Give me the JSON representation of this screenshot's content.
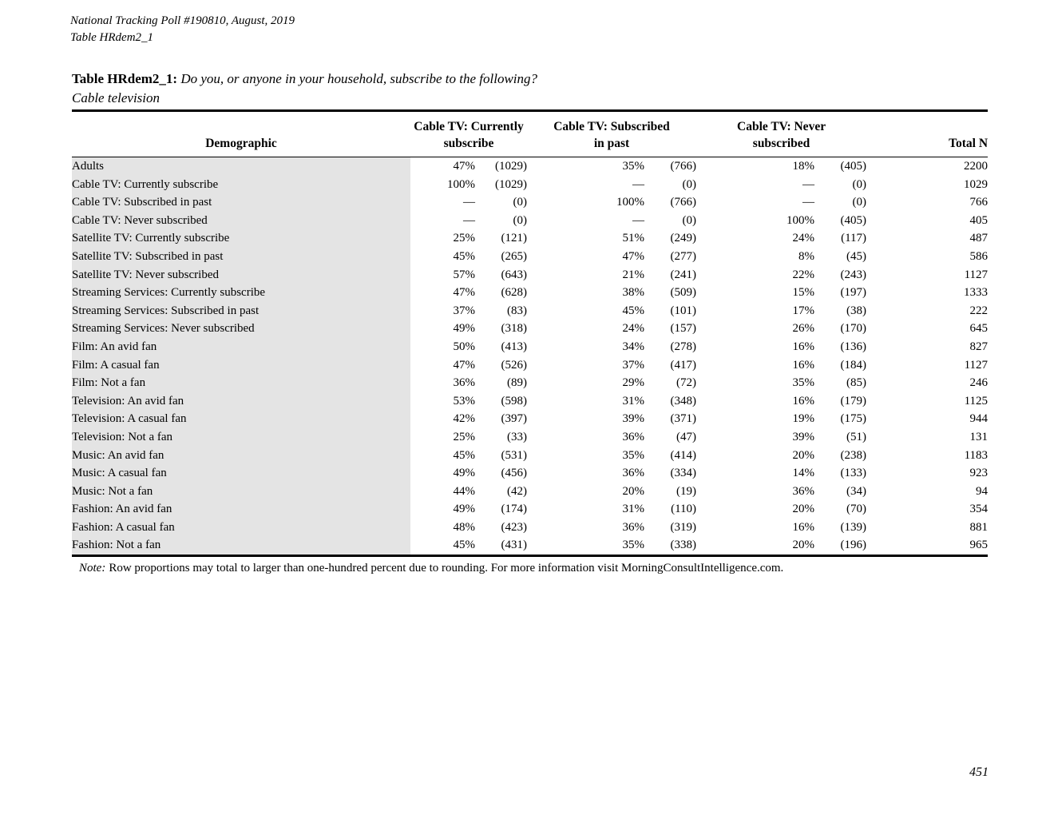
{
  "meta": {
    "line1": "National Tracking Poll #190810, August, 2019",
    "line2": "Table HRdem2_1",
    "page_number": "451"
  },
  "title": {
    "label": "Table HRdem2_1:",
    "question": "Do you, or anyone in your household, subscribe to the following?",
    "subtitle": "Cable television"
  },
  "colors": {
    "row_shade": "#e4e4e4",
    "rule": "#000000",
    "text": "#000000"
  },
  "table": {
    "header": {
      "demographic": "Demographic",
      "group1_line1": "Cable TV: Currently",
      "group1_line2": "subscribe",
      "group2_line1": "Cable TV: Subscribed",
      "group2_line2": "in past",
      "group3_line1": "Cable TV: Never",
      "group3_line2": "subscribed",
      "total": "Total N"
    },
    "rows": [
      {
        "label": "Adults",
        "c1_pct": "47%",
        "c1_n": "(1029)",
        "c2_pct": "35%",
        "c2_n": "(766)",
        "c3_pct": "18%",
        "c3_n": "(405)",
        "total": "2200"
      },
      {
        "label": "Cable TV: Currently subscribe",
        "c1_pct": "100%",
        "c1_n": "(1029)",
        "c2_pct": "—",
        "c2_n": "(0)",
        "c3_pct": "—",
        "c3_n": "(0)",
        "total": "1029"
      },
      {
        "label": "Cable TV: Subscribed in past",
        "c1_pct": "—",
        "c1_n": "(0)",
        "c2_pct": "100%",
        "c2_n": "(766)",
        "c3_pct": "—",
        "c3_n": "(0)",
        "total": "766"
      },
      {
        "label": "Cable TV: Never subscribed",
        "c1_pct": "—",
        "c1_n": "(0)",
        "c2_pct": "—",
        "c2_n": "(0)",
        "c3_pct": "100%",
        "c3_n": "(405)",
        "total": "405"
      },
      {
        "label": "Satellite TV: Currently subscribe",
        "c1_pct": "25%",
        "c1_n": "(121)",
        "c2_pct": "51%",
        "c2_n": "(249)",
        "c3_pct": "24%",
        "c3_n": "(117)",
        "total": "487"
      },
      {
        "label": "Satellite TV: Subscribed in past",
        "c1_pct": "45%",
        "c1_n": "(265)",
        "c2_pct": "47%",
        "c2_n": "(277)",
        "c3_pct": "8%",
        "c3_n": "(45)",
        "total": "586"
      },
      {
        "label": "Satellite TV: Never subscribed",
        "c1_pct": "57%",
        "c1_n": "(643)",
        "c2_pct": "21%",
        "c2_n": "(241)",
        "c3_pct": "22%",
        "c3_n": "(243)",
        "total": "1127"
      },
      {
        "label": "Streaming Services: Currently subscribe",
        "c1_pct": "47%",
        "c1_n": "(628)",
        "c2_pct": "38%",
        "c2_n": "(509)",
        "c3_pct": "15%",
        "c3_n": "(197)",
        "total": "1333"
      },
      {
        "label": "Streaming Services: Subscribed in past",
        "c1_pct": "37%",
        "c1_n": "(83)",
        "c2_pct": "45%",
        "c2_n": "(101)",
        "c3_pct": "17%",
        "c3_n": "(38)",
        "total": "222"
      },
      {
        "label": "Streaming Services: Never subscribed",
        "c1_pct": "49%",
        "c1_n": "(318)",
        "c2_pct": "24%",
        "c2_n": "(157)",
        "c3_pct": "26%",
        "c3_n": "(170)",
        "total": "645"
      },
      {
        "label": "Film: An avid fan",
        "c1_pct": "50%",
        "c1_n": "(413)",
        "c2_pct": "34%",
        "c2_n": "(278)",
        "c3_pct": "16%",
        "c3_n": "(136)",
        "total": "827"
      },
      {
        "label": "Film: A casual fan",
        "c1_pct": "47%",
        "c1_n": "(526)",
        "c2_pct": "37%",
        "c2_n": "(417)",
        "c3_pct": "16%",
        "c3_n": "(184)",
        "total": "1127"
      },
      {
        "label": "Film: Not a fan",
        "c1_pct": "36%",
        "c1_n": "(89)",
        "c2_pct": "29%",
        "c2_n": "(72)",
        "c3_pct": "35%",
        "c3_n": "(85)",
        "total": "246"
      },
      {
        "label": "Television: An avid fan",
        "c1_pct": "53%",
        "c1_n": "(598)",
        "c2_pct": "31%",
        "c2_n": "(348)",
        "c3_pct": "16%",
        "c3_n": "(179)",
        "total": "1125"
      },
      {
        "label": "Television: A casual fan",
        "c1_pct": "42%",
        "c1_n": "(397)",
        "c2_pct": "39%",
        "c2_n": "(371)",
        "c3_pct": "19%",
        "c3_n": "(175)",
        "total": "944"
      },
      {
        "label": "Television: Not a fan",
        "c1_pct": "25%",
        "c1_n": "(33)",
        "c2_pct": "36%",
        "c2_n": "(47)",
        "c3_pct": "39%",
        "c3_n": "(51)",
        "total": "131"
      },
      {
        "label": "Music: An avid fan",
        "c1_pct": "45%",
        "c1_n": "(531)",
        "c2_pct": "35%",
        "c2_n": "(414)",
        "c3_pct": "20%",
        "c3_n": "(238)",
        "total": "1183"
      },
      {
        "label": "Music: A casual fan",
        "c1_pct": "49%",
        "c1_n": "(456)",
        "c2_pct": "36%",
        "c2_n": "(334)",
        "c3_pct": "14%",
        "c3_n": "(133)",
        "total": "923"
      },
      {
        "label": "Music: Not a fan",
        "c1_pct": "44%",
        "c1_n": "(42)",
        "c2_pct": "20%",
        "c2_n": "(19)",
        "c3_pct": "36%",
        "c3_n": "(34)",
        "total": "94"
      },
      {
        "label": "Fashion: An avid fan",
        "c1_pct": "49%",
        "c1_n": "(174)",
        "c2_pct": "31%",
        "c2_n": "(110)",
        "c3_pct": "20%",
        "c3_n": "(70)",
        "total": "354"
      },
      {
        "label": "Fashion: A casual fan",
        "c1_pct": "48%",
        "c1_n": "(423)",
        "c2_pct": "36%",
        "c2_n": "(319)",
        "c3_pct": "16%",
        "c3_n": "(139)",
        "total": "881"
      },
      {
        "label": "Fashion: Not a fan",
        "c1_pct": "45%",
        "c1_n": "(431)",
        "c2_pct": "35%",
        "c2_n": "(338)",
        "c3_pct": "20%",
        "c3_n": "(196)",
        "total": "965"
      }
    ]
  },
  "note": {
    "label": "Note:",
    "text": "Row proportions may total to larger than one-hundred percent due to rounding. For more information visit MorningConsultIntelligence.com."
  }
}
